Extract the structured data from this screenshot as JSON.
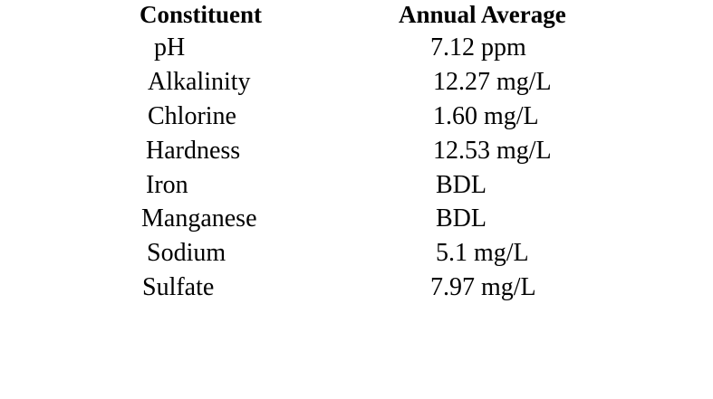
{
  "table": {
    "headers": {
      "constituent": "Constituent",
      "annual_average": "Annual Average"
    },
    "rows": [
      {
        "constituent": "pH",
        "value": "7.12 ppm"
      },
      {
        "constituent": "Alkalinity",
        "value": "12.27 mg/L"
      },
      {
        "constituent": "Chlorine",
        "value": "1.60 mg/L"
      },
      {
        "constituent": "Hardness",
        "value": "12.53 mg/L"
      },
      {
        "constituent": "Iron",
        "value": "BDL"
      },
      {
        "constituent": "Manganese",
        "value": "BDL"
      },
      {
        "constituent": "Sodium",
        "value": "5.1 mg/L"
      },
      {
        "constituent": "Sulfate",
        "value": "7.97 mg/L"
      }
    ]
  }
}
